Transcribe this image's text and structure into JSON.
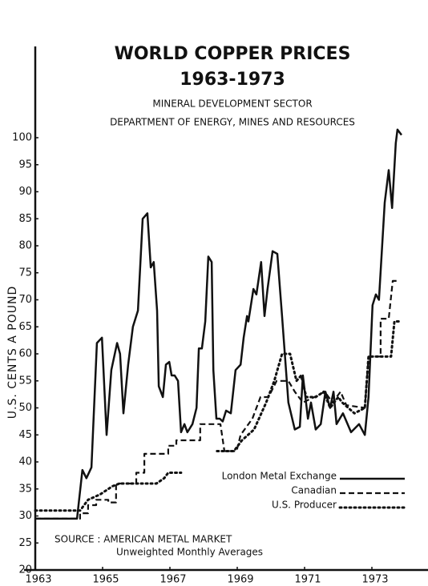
{
  "chart_data": {
    "type": "line",
    "title": "WORLD COPPER PRICES",
    "subtitle": "1963-1973",
    "subtitle2": "MINERAL DEVELOPMENT SECTOR",
    "subtitle3": "DEPARTMENT OF ENERGY, MINES AND RESOURCES",
    "ylabel": "U.S. CENTS A POUND",
    "source": "SOURCE : AMERICAN METAL MARKET",
    "note": "Unweighted Monthly Averages",
    "xlim": [
      1963,
      1974
    ],
    "xticks": [
      1963,
      1965,
      1967,
      1969,
      1971,
      1973
    ],
    "ylim": [
      20,
      100
    ],
    "yticks": [
      20,
      25,
      30,
      35,
      40,
      45,
      50,
      55,
      60,
      65,
      70,
      75,
      80,
      85,
      90,
      95,
      100
    ],
    "legend": "bottom-right",
    "series": [
      {
        "name": "London Metal Exchange",
        "color": "#111111",
        "dash": "solid",
        "x": [
          1963.0,
          1964.24,
          1964.4,
          1964.52,
          1964.67,
          1964.83,
          1964.98,
          1965.12,
          1965.26,
          1965.43,
          1965.52,
          1965.62,
          1965.76,
          1965.9,
          1966.05,
          1966.19,
          1966.33,
          1966.43,
          1966.52,
          1966.62,
          1966.67,
          1966.79,
          1966.88,
          1966.98,
          1967.05,
          1967.14,
          1967.24,
          1967.33,
          1967.43,
          1967.52,
          1967.67,
          1967.79,
          1967.86,
          1967.95,
          1968.05,
          1968.14,
          1968.24,
          1968.29,
          1968.38,
          1968.48,
          1968.57,
          1968.67,
          1968.81,
          1968.95,
          1969.1,
          1969.19,
          1969.29,
          1969.33,
          1969.48,
          1969.57,
          1969.71,
          1969.81,
          1969.9,
          1970.05,
          1970.19,
          1970.33,
          1970.52,
          1970.71,
          1970.86,
          1970.95,
          1971.1,
          1971.19,
          1971.33,
          1971.48,
          1971.62,
          1971.76,
          1971.86,
          1971.95,
          1972.14,
          1972.38,
          1972.62,
          1972.79,
          1972.9,
          1973.02,
          1973.12,
          1973.21,
          1973.38,
          1973.5,
          1973.6,
          1973.71,
          1973.76,
          1973.88
        ],
        "values": [
          29.5,
          29.5,
          38.5,
          37,
          39,
          62,
          63,
          45,
          57,
          62,
          60,
          49,
          58,
          65,
          68,
          85,
          86,
          76,
          77,
          68,
          54,
          52,
          58,
          58.5,
          56,
          56,
          55,
          45.5,
          47,
          45.5,
          47,
          50,
          61,
          61,
          66,
          78,
          77,
          57,
          48,
          48,
          47.5,
          49.5,
          49,
          57,
          58,
          63,
          67,
          66,
          72,
          71,
          77,
          67,
          72,
          79,
          78.5,
          67,
          51,
          46,
          46.5,
          56,
          48,
          51,
          46,
          47,
          53,
          50,
          53,
          47,
          49,
          45.5,
          47,
          45,
          52,
          69,
          71,
          70,
          88,
          94,
          87,
          99,
          101.5,
          100.5
        ]
      },
      {
        "name": "Canadian",
        "color": "#111111",
        "dash": "dashed",
        "x": [
          1963,
          1964.33,
          1964.33,
          1964.57,
          1964.57,
          1964.81,
          1964.81,
          1965.17,
          1965.17,
          1965.4,
          1965.4,
          1966.0,
          1966.0,
          1966.24,
          1966.24,
          1966.95,
          1966.95,
          1967.19,
          1967.19,
          1967.9,
          1967.9,
          1968.5,
          1968.62,
          1968.98,
          1969.1,
          1969.45,
          1969.69,
          1969.93,
          1970.17,
          1970.52,
          1970.71,
          1970.95,
          1971.29,
          1971.6,
          1971.83,
          1972.07,
          1972.24,
          1972.79,
          1972.9,
          1973.26,
          1973.26,
          1973.5,
          1973.62,
          1973.81
        ],
        "values": [
          29.5,
          29.5,
          30.5,
          30.5,
          32,
          32,
          33,
          33,
          32.5,
          32.5,
          36,
          36,
          38,
          38,
          41.5,
          41.5,
          43,
          43,
          44,
          44,
          47,
          47,
          42,
          42,
          45,
          48,
          52,
          52,
          55,
          55,
          53,
          51,
          52,
          53,
          51,
          53,
          50.5,
          50,
          59.5,
          59.5,
          66.5,
          66.5,
          73.5,
          73.5
        ]
      },
      {
        "name": "U.S. Producer",
        "color": "#111111",
        "dash": "dotted",
        "x": [
          1963,
          1964.33,
          1964.57,
          1964.93,
          1965.29,
          1965.5,
          1966.6,
          1966.83,
          1966.95,
          1967.33,
          1967.6,
          1968.4,
          1968.9,
          1969.14,
          1969.5,
          1969.86,
          1970.1,
          1970.33,
          1970.57,
          1970.76,
          1970.9,
          1971.05,
          1971.33,
          1971.57,
          1971.76,
          1972.0,
          1972.12,
          1972.48,
          1972.79,
          1972.9,
          1973.57,
          1973.67,
          1973.86
        ],
        "values": [
          31,
          31,
          33,
          34,
          35.5,
          36,
          36,
          37,
          38,
          38,
          null,
          42,
          42,
          44,
          46,
          51,
          55,
          60,
          60,
          55,
          56,
          52,
          52,
          53,
          50,
          52,
          51,
          49,
          50,
          59.5,
          59.5,
          66,
          66
        ]
      }
    ]
  }
}
